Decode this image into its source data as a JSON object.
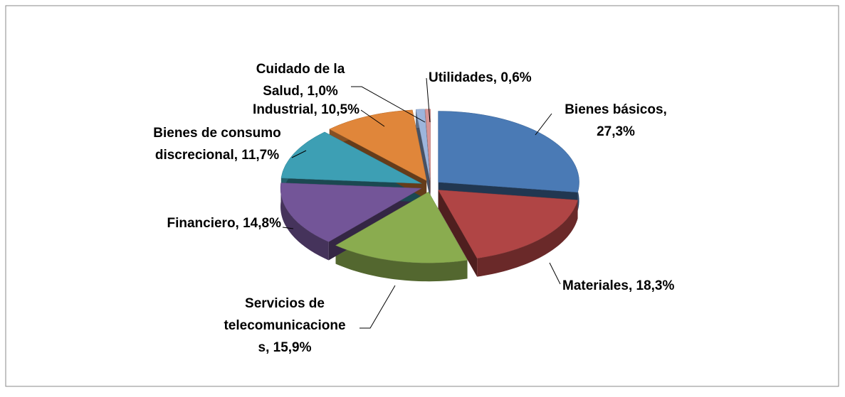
{
  "chart_data": {
    "type": "pie3d",
    "value_labels": [
      "Bienes básicos, 27,3%",
      "Materiales, 18,3%",
      "Servicios de telecomunicaciones, 15,9%",
      "Financiero, 14,8%",
      "Bienes de consumo discrecional, 11,7%",
      "Industrial, 10,5%",
      "Cuidado de la Salud, 1,0%",
      "Utilidades, 0,6%"
    ],
    "values": [
      27.3,
      18.3,
      15.9,
      14.8,
      11.7,
      10.5,
      1.0,
      0.6
    ],
    "colors": [
      "#4a7ab5",
      "#b04545",
      "#8aac4f",
      "#735598",
      "#3d9fb4",
      "#e0863a",
      "#9db5dc",
      "#d99594"
    ]
  }
}
